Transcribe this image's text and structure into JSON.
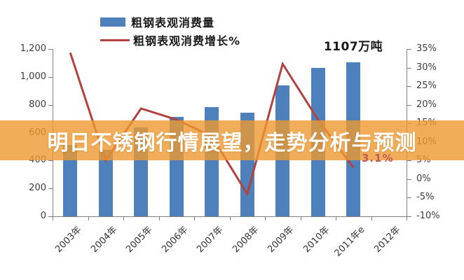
{
  "banner": {
    "text": "明日不锈钢行情展望，走势分析与预测",
    "bg_color": "#EE9830",
    "text_color": "#FFFFFF"
  },
  "legend": [
    {
      "label": "粗钢表观消费量",
      "type": "bar",
      "color": "#4E81BC"
    },
    {
      "label": "粗钢表观消费增长%",
      "type": "line",
      "color": "#B0423F"
    }
  ],
  "annotations": {
    "peak_label": "1107万吨",
    "last_growth_label": "3.1%"
  },
  "chart_data": {
    "type": "bar",
    "subtype": "bar+line combo, dual axis",
    "title": "",
    "categories": [
      "2003年",
      "2004年",
      "2005年",
      "2006年",
      "2007年",
      "2008年",
      "2009年",
      "2010年",
      "2011年e",
      "2012年"
    ],
    "series": [
      {
        "name": "粗钢表观消费量",
        "type": "bar",
        "axis": "left",
        "unit": "万吨",
        "color": "#4E81BC",
        "values": [
          510,
          475,
          640,
          715,
          785,
          745,
          940,
          1065,
          1107,
          null
        ]
      },
      {
        "name": "粗钢表观消费增长%",
        "type": "line",
        "axis": "right",
        "unit": "%",
        "color": "#B0423F",
        "values": [
          34,
          5,
          19,
          16,
          11.5,
          -4,
          31,
          16,
          3.1,
          null
        ]
      }
    ],
    "left_axis": {
      "min": 0,
      "max": 1200,
      "tick_values": [
        1200,
        1000,
        800,
        600,
        400,
        200,
        0
      ],
      "tick_labels": [
        "1,200",
        "1,000",
        "800",
        "600",
        "400",
        "200",
        "0"
      ]
    },
    "right_axis": {
      "min": -10,
      "max": 35,
      "tick_values": [
        35,
        30,
        25,
        20,
        15,
        10,
        5,
        0,
        -5,
        -10
      ],
      "tick_labels": [
        "35%",
        "30%",
        "25%",
        "20%",
        "15%",
        "10%",
        "5%",
        "0%",
        "-5%",
        "-10%"
      ]
    },
    "grid": false,
    "legend_position": "top-left"
  }
}
